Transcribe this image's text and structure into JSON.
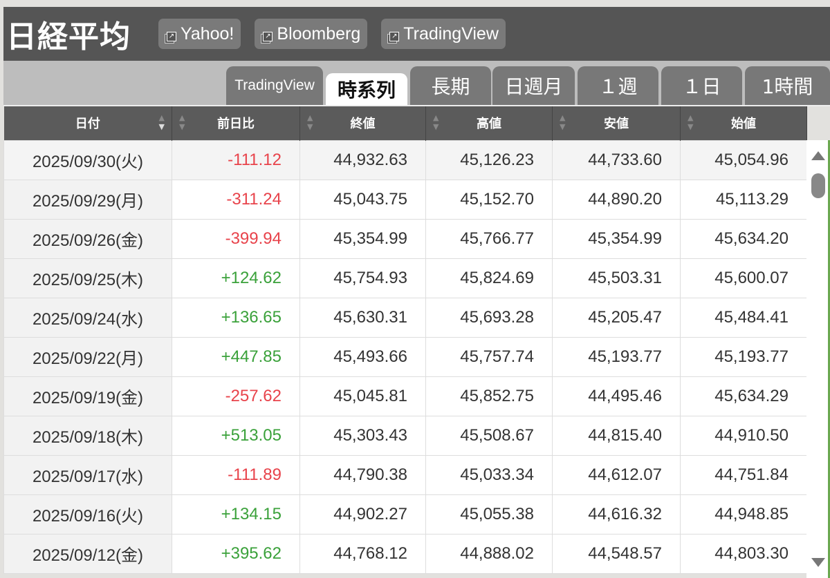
{
  "header": {
    "title": "日経平均",
    "links": [
      {
        "label": "Yahoo!",
        "icon": "external-link-icon"
      },
      {
        "label": "Bloomberg",
        "icon": "external-link-icon"
      },
      {
        "label": "TradingView",
        "icon": "external-link-icon"
      }
    ]
  },
  "tabs": [
    {
      "label": "TradingView"
    },
    {
      "label": "時系列",
      "active": true
    },
    {
      "label": "長期"
    },
    {
      "label": "日週月"
    },
    {
      "label": "１週"
    },
    {
      "label": "１日"
    },
    {
      "label": "1時間"
    }
  ],
  "table": {
    "columns": [
      "日付",
      "前日比",
      "終値",
      "高値",
      "安値",
      "始値"
    ],
    "rows": [
      [
        "2025/09/30(火)",
        "-111.12",
        "44,932.63",
        "45,126.23",
        "44,733.60",
        "45,054.96"
      ],
      [
        "2025/09/29(月)",
        "-311.24",
        "45,043.75",
        "45,152.70",
        "44,890.20",
        "45,113.29"
      ],
      [
        "2025/09/26(金)",
        "-399.94",
        "45,354.99",
        "45,766.77",
        "45,354.99",
        "45,634.20"
      ],
      [
        "2025/09/25(木)",
        "+124.62",
        "45,754.93",
        "45,824.69",
        "45,503.31",
        "45,600.07"
      ],
      [
        "2025/09/24(水)",
        "+136.65",
        "45,630.31",
        "45,693.28",
        "45,205.47",
        "45,484.41"
      ],
      [
        "2025/09/22(月)",
        "+447.85",
        "45,493.66",
        "45,757.74",
        "45,193.77",
        "45,193.77"
      ],
      [
        "2025/09/19(金)",
        "-257.62",
        "45,045.81",
        "45,852.75",
        "44,495.46",
        "45,634.29"
      ],
      [
        "2025/09/18(木)",
        "+513.05",
        "45,303.43",
        "45,508.67",
        "44,815.40",
        "44,910.50"
      ],
      [
        "2025/09/17(水)",
        "-111.89",
        "44,790.38",
        "45,033.34",
        "44,612.07",
        "44,751.84"
      ],
      [
        "2025/09/16(火)",
        "+134.15",
        "44,902.27",
        "45,055.38",
        "44,616.32",
        "44,948.85"
      ],
      [
        "2025/09/12(金)",
        "+395.62",
        "44,768.12",
        "44,888.02",
        "44,548.57",
        "44,803.30"
      ]
    ]
  },
  "colors": {
    "negative": "#e8434b",
    "positive": "#3aa13a",
    "header_bg": "#555555"
  }
}
